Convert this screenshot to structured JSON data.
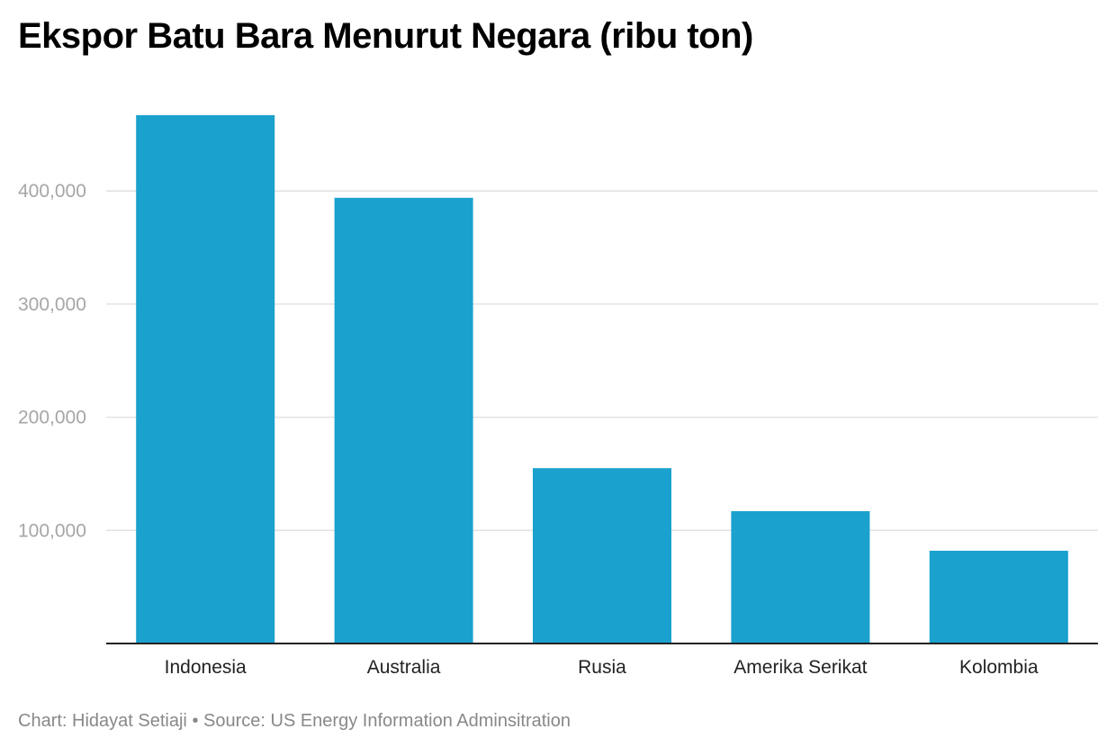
{
  "chart_data": {
    "type": "bar",
    "title": "Ekspor Batu Bara Menurut Negara (ribu ton)",
    "categories": [
      "Indonesia",
      "Australia",
      "Rusia",
      "Amerika Serikat",
      "Kolombia"
    ],
    "values": [
      467000,
      394000,
      155000,
      117000,
      82000
    ],
    "ylim": [
      0,
      467000
    ],
    "yticks": [
      100000,
      200000,
      300000,
      400000
    ],
    "ytick_labels": [
      "100,000",
      "200,000",
      "300,000",
      "400,000"
    ],
    "xlabel": "",
    "ylabel": "",
    "grid": true,
    "bar_color": "#1ba1cd",
    "gridline_color": "#e2e2e2",
    "baseline_color": "#222222"
  },
  "footer": {
    "credit": "Chart: Hidayat Setiaji",
    "separator": "•",
    "source": "Source: US Energy Information Adminsitration"
  }
}
